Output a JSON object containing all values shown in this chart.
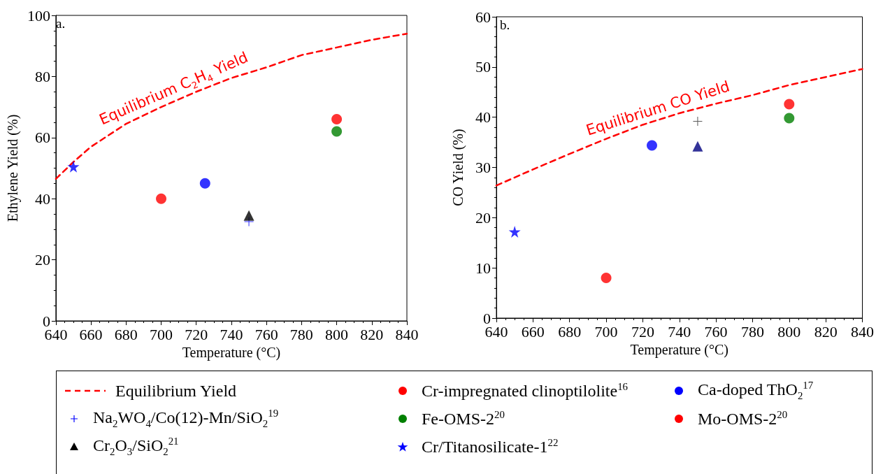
{
  "chart_data": [
    {
      "type": "scatter",
      "xlabel": "Temperature (°C)",
      "ylabel": "Ethylene Yield (%)",
      "xlim": [
        640,
        840
      ],
      "ylim": [
        0,
        100
      ],
      "xticks": [
        640,
        660,
        680,
        700,
        720,
        740,
        760,
        780,
        800,
        820,
        840
      ],
      "yticks": [
        0,
        20,
        40,
        60,
        80,
        100
      ],
      "grid": false,
      "legend": "bottom",
      "annotations": [
        "a.",
        "Equilibrium C$_{2}$H$_{4}$ Yield"
      ],
      "series": [
        {
          "name": "Equilibrium Yield",
          "type": "line",
          "color": "#ff0000",
          "marker": "none",
          "line_style": "dashed",
          "x": [
            640,
            650,
            660,
            680,
            700,
            720,
            740,
            760,
            780,
            800,
            820,
            840
          ],
          "values": [
            46.5,
            52,
            57,
            64.5,
            70,
            75,
            79.5,
            83,
            87,
            89.5,
            92,
            94
          ]
        },
        {
          "name": "Cr-impregnated clinoptilolite$^{16}$",
          "color": "#ff0000",
          "marker": "circle",
          "x": [
            700
          ],
          "values": [
            40
          ]
        },
        {
          "name": "Ca-doped ThO$_{2}$$^{17}$",
          "color": "#0000ff",
          "marker": "circle",
          "x": [
            725
          ],
          "values": [
            45
          ]
        },
        {
          "name": "Na$_{2}$WO$_{4}$/Co(12)-Mn/SiO$_{2}$$^{19}$",
          "color": "#0000ff",
          "marker": "cross",
          "x": [
            750
          ],
          "values": [
            32.5
          ]
        },
        {
          "name": "Fe-OMS-2$^{20}$",
          "color": "#008000",
          "marker": "circle",
          "x": [
            800
          ],
          "values": [
            62
          ]
        },
        {
          "name": "Mo-OMS-2$^{20}$",
          "color": "#ff0000",
          "marker": "circle",
          "x": [
            800
          ],
          "values": [
            66
          ]
        },
        {
          "name": "Cr$_{2}$O$_{3}$/SiO$_{2}$$^{21}$",
          "color": "#000000",
          "marker": "triangle",
          "x": [
            750
          ],
          "values": [
            34.5
          ]
        },
        {
          "name": "Cr/Titanosilicate-1$^{22}$",
          "color": "#0000ff",
          "marker": "star",
          "x": [
            650
          ],
          "values": [
            50.5
          ]
        }
      ]
    },
    {
      "type": "scatter",
      "xlabel": "Temperature (°C)",
      "ylabel": "CO Yield (%)",
      "xlim": [
        640,
        840
      ],
      "ylim": [
        0,
        60
      ],
      "xticks": [
        640,
        660,
        680,
        700,
        720,
        740,
        760,
        780,
        800,
        820,
        840
      ],
      "yticks": [
        0,
        10,
        20,
        30,
        40,
        50,
        60
      ],
      "grid": false,
      "annotations": [
        "b.",
        "Equilibrium CO Yield"
      ],
      "series": [
        {
          "type": "line",
          "color": "#ff0000",
          "marker": "none",
          "line_style": "dashed",
          "x": [
            640,
            660,
            680,
            700,
            720,
            740,
            760,
            780,
            800,
            820,
            840
          ],
          "values": [
            26.4,
            29.6,
            32.7,
            35.7,
            38.5,
            40.8,
            42.7,
            44.4,
            46.4,
            48,
            49.6
          ]
        },
        {
          "color": "#ff0000",
          "marker": "circle",
          "x": [
            700
          ],
          "values": [
            8
          ]
        },
        {
          "color": "#0000ff",
          "marker": "circle",
          "x": [
            725
          ],
          "values": [
            34.4
          ]
        },
        {
          "color": "#333333",
          "marker": "cross",
          "x": [
            750
          ],
          "values": [
            39.2
          ]
        },
        {
          "color": "#008000",
          "marker": "circle",
          "x": [
            800
          ],
          "values": [
            39.8
          ]
        },
        {
          "color": "#ff0000",
          "marker": "circle",
          "x": [
            800
          ],
          "values": [
            42.6
          ]
        },
        {
          "color": "#000080",
          "marker": "triangle",
          "x": [
            750
          ],
          "values": [
            34.2
          ]
        },
        {
          "color": "#0000ff",
          "marker": "star",
          "x": [
            650
          ],
          "values": [
            17.2
          ]
        }
      ]
    }
  ]
}
